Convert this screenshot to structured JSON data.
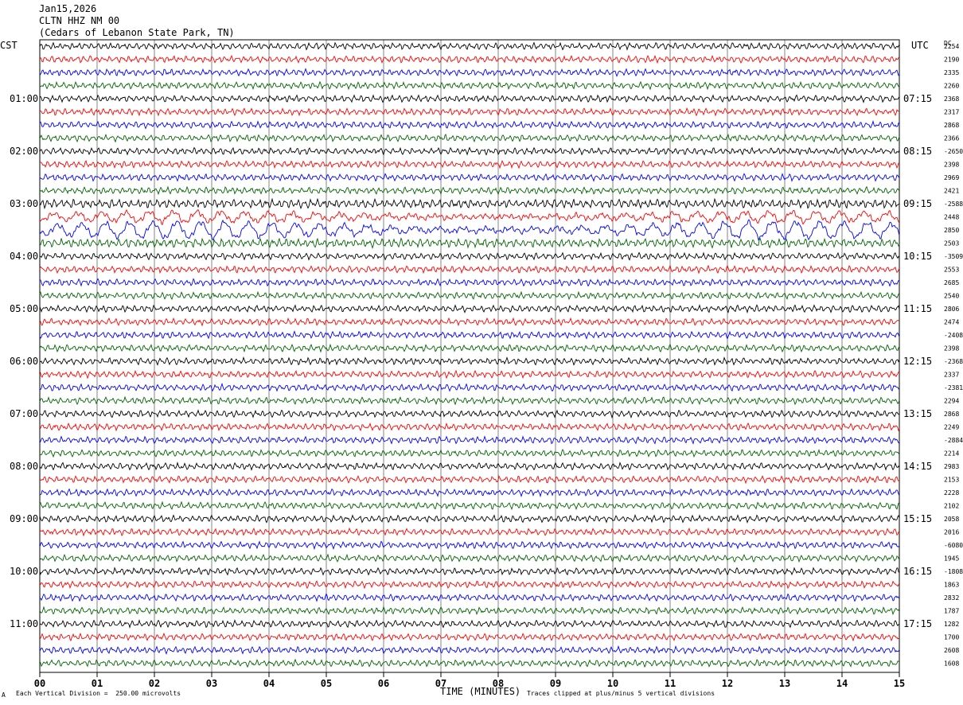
{
  "header": {
    "date": "Jan15,2026",
    "station": "CLTN HHZ NM 00",
    "location": "(Cedars of Lebanon State Park, TN)"
  },
  "left_timezone": "CST",
  "right_timezone": "UTC",
  "dc_header": "DC",
  "footer": {
    "scale_note": "Each Vertical Division =  250.00 microvolts",
    "clip_note": "Traces clipped at plus/minus 5 vertical divisions",
    "corner_mark": "A"
  },
  "colors": {
    "trace_cycle": [
      "#000000",
      "#ff0000",
      "#0000ff",
      "#006400"
    ],
    "grid": "#000000"
  },
  "chart_data": {
    "type": "line",
    "xlabel": "TIME (MINUTES)",
    "xlim": [
      0,
      15
    ],
    "x_ticks": [
      "00",
      "01",
      "02",
      "03",
      "04",
      "05",
      "06",
      "07",
      "08",
      "09",
      "10",
      "11",
      "12",
      "13",
      "14",
      "15"
    ],
    "rows_per_hour": 4,
    "minutes_per_row": 15,
    "left_time_labels": [
      "01:00",
      "02:00",
      "03:00",
      "04:00",
      "05:00",
      "06:00",
      "07:00",
      "08:00",
      "09:00",
      "10:00",
      "11:00"
    ],
    "right_time_labels": [
      "07:15",
      "08:15",
      "09:15",
      "10:15",
      "11:15",
      "12:15",
      "13:15",
      "14:15",
      "15:15",
      "16:15",
      "17:15"
    ],
    "traces": [
      {
        "dc": "2254",
        "amp": 1.0
      },
      {
        "dc": "2190",
        "amp": 1.0
      },
      {
        "dc": "2335",
        "amp": 1.0
      },
      {
        "dc": "2260",
        "amp": 1.0
      },
      {
        "dc": "2368",
        "amp": 1.0
      },
      {
        "dc": "2317",
        "amp": 1.0
      },
      {
        "dc": "2868",
        "amp": 1.0
      },
      {
        "dc": "2366",
        "amp": 1.0
      },
      {
        "dc": "-2650",
        "amp": 1.0
      },
      {
        "dc": "2398",
        "amp": 1.0
      },
      {
        "dc": "2969",
        "amp": 1.0
      },
      {
        "dc": "2421",
        "amp": 1.0
      },
      {
        "dc": "-2588",
        "amp": 1.3
      },
      {
        "dc": "2448",
        "amp": 2.0
      },
      {
        "dc": "2850",
        "amp": 3.2
      },
      {
        "dc": "2503",
        "amp": 1.3
      },
      {
        "dc": "-3509",
        "amp": 1.0
      },
      {
        "dc": "2553",
        "amp": 1.0
      },
      {
        "dc": "2685",
        "amp": 1.0
      },
      {
        "dc": "2540",
        "amp": 1.0
      },
      {
        "dc": "2806",
        "amp": 1.0
      },
      {
        "dc": "2474",
        "amp": 1.0
      },
      {
        "dc": "-2408",
        "amp": 1.0
      },
      {
        "dc": "2398",
        "amp": 1.0
      },
      {
        "dc": "-2368",
        "amp": 1.0
      },
      {
        "dc": "2337",
        "amp": 1.0
      },
      {
        "dc": "-2381",
        "amp": 1.0
      },
      {
        "dc": "2294",
        "amp": 1.0
      },
      {
        "dc": "2868",
        "amp": 1.0
      },
      {
        "dc": "2249",
        "amp": 1.0
      },
      {
        "dc": "-2884",
        "amp": 1.0
      },
      {
        "dc": "2214",
        "amp": 1.0
      },
      {
        "dc": "2983",
        "amp": 1.0
      },
      {
        "dc": "2153",
        "amp": 1.0
      },
      {
        "dc": "2228",
        "amp": 1.0
      },
      {
        "dc": "2102",
        "amp": 1.0
      },
      {
        "dc": "2058",
        "amp": 1.0
      },
      {
        "dc": "2016",
        "amp": 1.0
      },
      {
        "dc": "-6080",
        "amp": 1.0
      },
      {
        "dc": "1945",
        "amp": 1.0
      },
      {
        "dc": "-1808",
        "amp": 1.0
      },
      {
        "dc": "1863",
        "amp": 1.0
      },
      {
        "dc": "2832",
        "amp": 1.0
      },
      {
        "dc": "1787",
        "amp": 1.0
      },
      {
        "dc": "1282",
        "amp": 1.0
      },
      {
        "dc": "1700",
        "amp": 1.0
      },
      {
        "dc": "2608",
        "amp": 1.0
      },
      {
        "dc": "1608",
        "amp": 1.0
      }
    ]
  }
}
